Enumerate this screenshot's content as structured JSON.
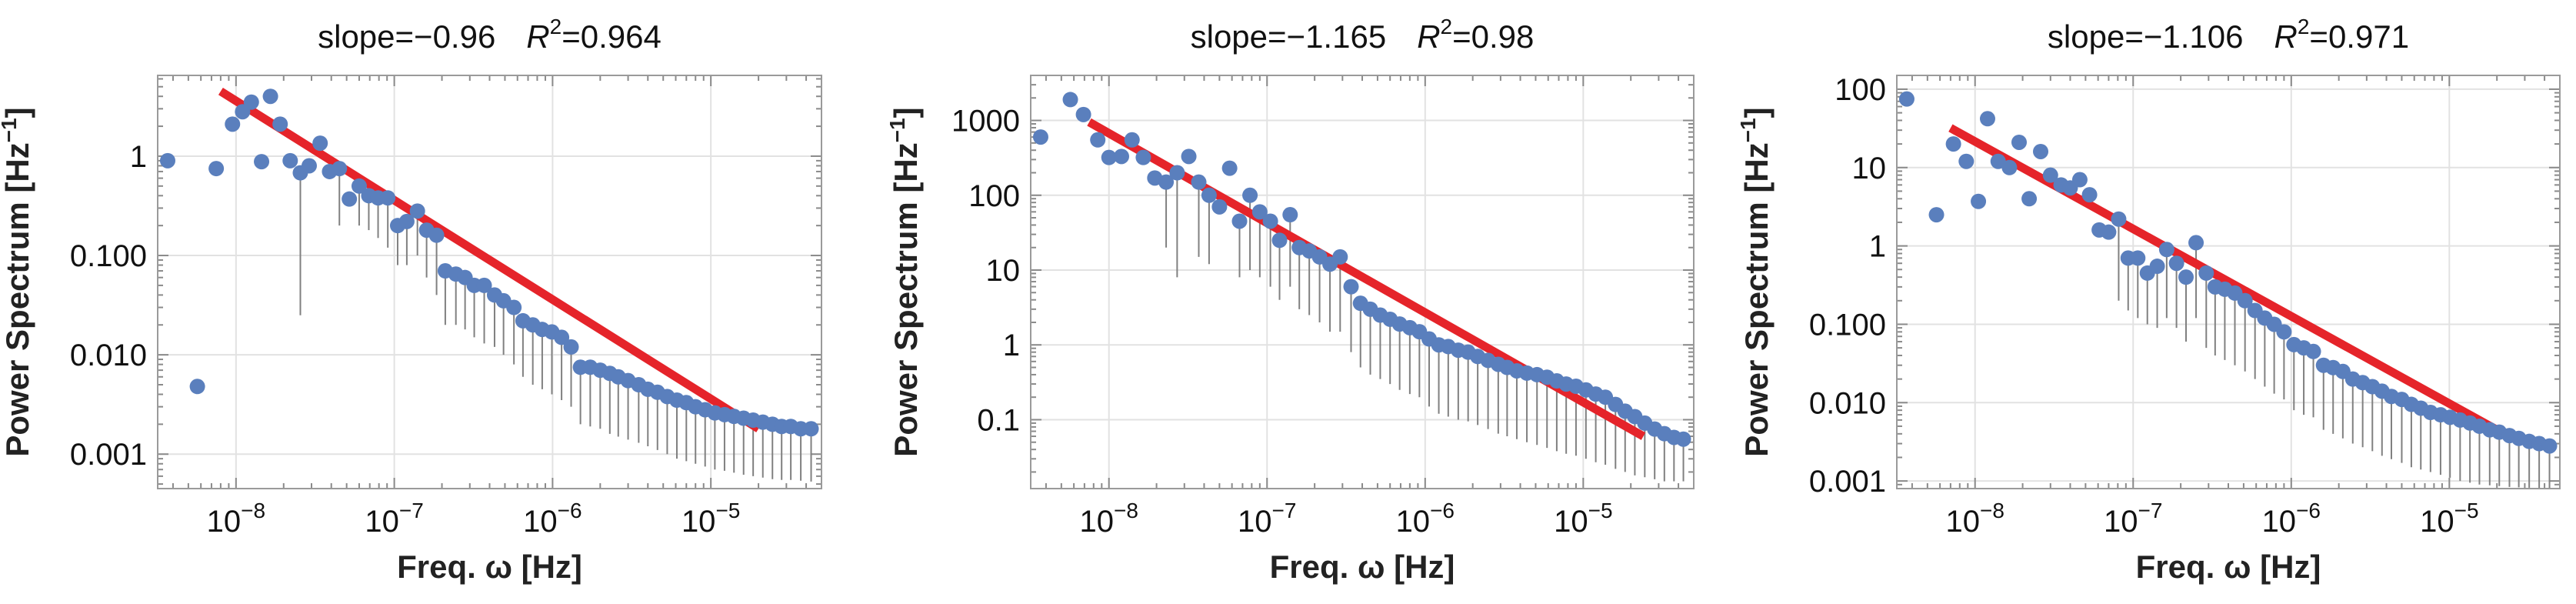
{
  "chart_data": [
    {
      "type": "scatter",
      "title": "slope=−0.96    R²=0.964",
      "title_parts": {
        "slope": "slope=−0.96",
        "r_symbol": "R",
        "r_exp": "2",
        "r_value": "=0.964"
      },
      "xlabel": "Freq. ω [Hz]",
      "ylabel": "Power Spectrum [Hz⁻¹]",
      "ylabel_parts": {
        "base": "Power Spectrum [Hz",
        "exp": "−1",
        "close": "]"
      },
      "x_scale": "log",
      "y_scale": "log",
      "xlim": [
        3.2e-09,
        5e-05
      ],
      "ylim": [
        0.00045,
        6.5
      ],
      "grid": true,
      "x_ticks": [
        {
          "value": 1e-08,
          "base": "10",
          "exp": "−8"
        },
        {
          "value": 1e-07,
          "base": "10",
          "exp": "−7"
        },
        {
          "value": 1e-06,
          "base": "10",
          "exp": "−6"
        },
        {
          "value": 1e-05,
          "base": "10",
          "exp": "−5"
        }
      ],
      "y_ticks": [
        {
          "value": 0.001,
          "label": "0.001"
        },
        {
          "value": 0.01,
          "label": "0.010"
        },
        {
          "value": 0.1,
          "label": "0.100"
        },
        {
          "value": 1,
          "label": "1"
        }
      ],
      "fit_line": {
        "slope": -0.96,
        "r2": 0.964,
        "x": [
          8e-09,
          2e-05
        ],
        "y": [
          4.5,
          0.0018
        ],
        "color": "#e5242a"
      },
      "series": [
        {
          "marker_color": "#5a7fbd",
          "x": [
            3.7e-09,
            5.7e-09,
            7.5e-09,
            9.5e-09,
            1.1e-08,
            1.25e-08,
            1.45e-08,
            1.65e-08,
            1.9e-08,
            2.2e-08,
            2.55e-08,
            2.9e-08,
            3.4e-08,
            3.9e-08,
            4.5e-08,
            5.2e-08,
            6e-08,
            6.9e-08,
            7.9e-08,
            9.1e-08,
            1.05e-07,
            1.2e-07,
            1.4e-07,
            1.6e-07,
            1.85e-07,
            2.1e-07,
            2.45e-07,
            2.8e-07,
            3.2e-07,
            3.7e-07,
            4.3e-07,
            4.9e-07,
            5.7e-07,
            6.5e-07,
            7.5e-07,
            8.6e-07,
            9.9e-07,
            1.14e-06,
            1.31e-06,
            1.5e-06,
            1.73e-06,
            2e-06,
            2.3e-06,
            2.6e-06,
            3e-06,
            3.5e-06,
            4e-06,
            4.6e-06,
            5.3e-06,
            6.1e-06,
            7e-06,
            8e-06,
            9.2e-06,
            1.06e-05,
            1.22e-05,
            1.4e-05,
            1.61e-05,
            1.85e-05,
            2.13e-05,
            2.45e-05,
            2.8e-05,
            3.2e-05,
            3.7e-05,
            4.3e-05
          ],
          "y": [
            0.9,
            0.0048,
            0.75,
            2.1,
            2.8,
            3.5,
            0.88,
            4.0,
            2.1,
            0.9,
            0.68,
            0.8,
            1.35,
            0.7,
            0.75,
            0.37,
            0.5,
            0.4,
            0.38,
            0.38,
            0.2,
            0.22,
            0.28,
            0.18,
            0.16,
            0.07,
            0.065,
            0.06,
            0.05,
            0.05,
            0.04,
            0.035,
            0.03,
            0.022,
            0.02,
            0.018,
            0.017,
            0.015,
            0.012,
            0.0075,
            0.0075,
            0.007,
            0.0065,
            0.006,
            0.0055,
            0.005,
            0.0045,
            0.0042,
            0.0038,
            0.0035,
            0.0033,
            0.003,
            0.0028,
            0.0026,
            0.0025,
            0.0024,
            0.0023,
            0.0022,
            0.0021,
            0.002,
            0.0019,
            0.0019,
            0.0018,
            0.0018
          ],
          "y_low": [
            null,
            null,
            null,
            null,
            null,
            null,
            null,
            null,
            null,
            null,
            0.025,
            null,
            null,
            null,
            0.2,
            null,
            0.2,
            0.18,
            0.15,
            0.12,
            0.08,
            0.08,
            0.1,
            0.06,
            0.04,
            0.02,
            0.02,
            0.018,
            0.015,
            0.013,
            0.012,
            0.01,
            0.008,
            0.006,
            0.005,
            0.0045,
            0.004,
            0.0035,
            0.003,
            0.002,
            0.0019,
            0.0018,
            0.0016,
            0.0015,
            0.0014,
            0.0013,
            0.0012,
            0.0011,
            0.001,
            0.0009,
            0.00085,
            0.0008,
            0.00075,
            0.0007,
            0.00068,
            0.00065,
            0.00062,
            0.0006,
            0.00058,
            0.00056,
            0.00055,
            0.00055,
            0.00054,
            0.00053
          ],
          "y_high": [
            null,
            null,
            null,
            null,
            null,
            null,
            null,
            null,
            null,
            null,
            null,
            null,
            null,
            null,
            null,
            null,
            null,
            null,
            null,
            null,
            null,
            null,
            null,
            null,
            null,
            null,
            null,
            null,
            null,
            null,
            null,
            null,
            null,
            null,
            null,
            null,
            null,
            null,
            null,
            null,
            null,
            null,
            null,
            null,
            null,
            null,
            null,
            null,
            null,
            null,
            null,
            null,
            null,
            null,
            null,
            null,
            null,
            null,
            null,
            null,
            null,
            null,
            null,
            null
          ]
        }
      ]
    },
    {
      "type": "scatter",
      "title": "slope=−1.165    R²=0.98",
      "title_parts": {
        "slope": "slope=−1.165",
        "r_symbol": "R",
        "r_exp": "2",
        "r_value": "=0.98"
      },
      "xlabel": "Freq. ω [Hz]",
      "ylabel": "Power Spectrum [Hz⁻¹]",
      "ylabel_parts": {
        "base": "Power Spectrum [Hz",
        "exp": "−1",
        "close": "]"
      },
      "x_scale": "log",
      "y_scale": "log",
      "xlim": [
        3.2e-09,
        5e-05
      ],
      "ylim": [
        0.012,
        4000
      ],
      "grid": true,
      "x_ticks": [
        {
          "value": 1e-08,
          "base": "10",
          "exp": "−8"
        },
        {
          "value": 1e-07,
          "base": "10",
          "exp": "−7"
        },
        {
          "value": 1e-06,
          "base": "10",
          "exp": "−6"
        },
        {
          "value": 1e-05,
          "base": "10",
          "exp": "−5"
        }
      ],
      "y_ticks": [
        {
          "value": 0.1,
          "label": "0.1"
        },
        {
          "value": 1,
          "label": "1"
        },
        {
          "value": 10,
          "label": "10"
        },
        {
          "value": 100,
          "label": "100"
        },
        {
          "value": 1000,
          "label": "1000"
        }
      ],
      "fit_line": {
        "slope": -1.165,
        "r2": 0.98,
        "x": [
          7.5e-09,
          2.4e-05
        ],
        "y": [
          950,
          0.06
        ],
        "color": "#e5242a"
      },
      "series": [
        {
          "marker_color": "#5a7fbd",
          "x": [
            3.7e-09,
            5.7e-09,
            6.9e-09,
            8.5e-09,
            1e-08,
            1.2e-08,
            1.4e-08,
            1.65e-08,
            1.95e-08,
            2.3e-08,
            2.7e-08,
            3.2e-08,
            3.7e-08,
            4.3e-08,
            5e-08,
            5.8e-08,
            6.7e-08,
            7.8e-08,
            9e-08,
            1.05e-07,
            1.2e-07,
            1.4e-07,
            1.6e-07,
            1.85e-07,
            2.15e-07,
            2.5e-07,
            2.9e-07,
            3.4e-07,
            3.9e-07,
            4.5e-07,
            5.2e-07,
            6e-07,
            6.9e-07,
            8e-07,
            9.2e-07,
            1.06e-06,
            1.22e-06,
            1.4e-06,
            1.62e-06,
            1.87e-06,
            2.15e-06,
            2.5e-06,
            2.9e-06,
            3.3e-06,
            3.8e-06,
            4.4e-06,
            5.1e-06,
            5.9e-06,
            6.8e-06,
            7.8e-06,
            9e-06,
            1.04e-05,
            1.2e-05,
            1.38e-05,
            1.6e-05,
            1.84e-05,
            2.12e-05,
            2.45e-05,
            2.83e-05,
            3.26e-05,
            3.75e-05,
            4.3e-05
          ],
          "y": [
            600,
            1900,
            1200,
            550,
            320,
            330,
            550,
            320,
            170,
            150,
            200,
            330,
            150,
            100,
            70,
            230,
            45,
            100,
            60,
            45,
            25,
            55,
            20,
            18,
            15,
            12,
            15,
            6,
            3.6,
            3,
            2.5,
            2.2,
            1.9,
            1.7,
            1.5,
            1.2,
            1.0,
            0.95,
            0.85,
            0.8,
            0.7,
            0.62,
            0.55,
            0.5,
            0.45,
            0.42,
            0.4,
            0.37,
            0.33,
            0.3,
            0.28,
            0.25,
            0.22,
            0.2,
            0.16,
            0.13,
            0.11,
            0.09,
            0.075,
            0.065,
            0.058,
            0.055
          ],
          "y_low": [
            null,
            null,
            null,
            null,
            null,
            null,
            null,
            null,
            null,
            20,
            8,
            null,
            15,
            12,
            null,
            null,
            8,
            10,
            8,
            6,
            4,
            6,
            3,
            2.5,
            2,
            1.5,
            1.5,
            0.8,
            0.5,
            0.4,
            0.35,
            0.3,
            0.25,
            0.22,
            0.2,
            0.15,
            0.12,
            0.11,
            0.1,
            0.095,
            0.085,
            0.075,
            0.065,
            0.06,
            0.055,
            0.05,
            0.046,
            0.042,
            0.038,
            0.035,
            0.033,
            0.03,
            0.027,
            0.025,
            0.022,
            0.02,
            0.018,
            0.017,
            0.016,
            0.015,
            0.015,
            0.015
          ],
          "y_high": [
            null,
            null,
            null,
            null,
            null,
            null,
            null,
            null,
            null,
            null,
            null,
            null,
            null,
            null,
            null,
            null,
            null,
            null,
            null,
            null,
            null,
            null,
            null,
            null,
            null,
            null,
            null,
            null,
            null,
            null,
            null,
            null,
            null,
            null,
            null,
            null,
            null,
            null,
            null,
            null,
            null,
            null,
            null,
            null,
            null,
            null,
            null,
            null,
            null,
            null,
            null,
            null,
            null,
            null,
            null,
            null,
            null,
            null,
            null,
            null,
            null,
            null
          ]
        }
      ]
    },
    {
      "type": "scatter",
      "title": "slope=−1.106    R²=0.971",
      "title_parts": {
        "slope": "slope=−1.106",
        "r_symbol": "R",
        "r_exp": "2",
        "r_value": "=0.971"
      },
      "xlabel": "Freq. ω [Hz]",
      "ylabel": "Power Spectrum [Hz⁻¹]",
      "ylabel_parts": {
        "base": "Power Spectrum [Hz",
        "exp": "−1",
        "close": "]"
      },
      "x_scale": "log",
      "y_scale": "log",
      "xlim": [
        3.2e-09,
        5e-05
      ],
      "ylim": [
        0.0008,
        150
      ],
      "grid": true,
      "x_ticks": [
        {
          "value": 1e-08,
          "base": "10",
          "exp": "−8"
        },
        {
          "value": 1e-07,
          "base": "10",
          "exp": "−7"
        },
        {
          "value": 1e-06,
          "base": "10",
          "exp": "−6"
        },
        {
          "value": 1e-05,
          "base": "10",
          "exp": "−5"
        }
      ],
      "y_ticks": [
        {
          "value": 0.001,
          "label": "0.001"
        },
        {
          "value": 0.01,
          "label": "0.010"
        },
        {
          "value": 0.1,
          "label": "0.100"
        },
        {
          "value": 1,
          "label": "1"
        },
        {
          "value": 10,
          "label": "10"
        },
        {
          "value": 100,
          "label": "100"
        }
      ],
      "fit_line": {
        "slope": -1.106,
        "r2": 0.971,
        "x": [
          7e-09,
          2.5e-05
        ],
        "y": [
          32,
          0.0035
        ],
        "color": "#e5242a"
      },
      "series": [
        {
          "marker_color": "#5a7fbd",
          "x": [
            3.7e-09,
            5.7e-09,
            7.3e-09,
            8.8e-09,
            1.05e-08,
            1.2e-08,
            1.4e-08,
            1.65e-08,
            1.9e-08,
            2.2e-08,
            2.6e-08,
            3e-08,
            3.5e-08,
            4e-08,
            4.6e-08,
            5.3e-08,
            6.1e-08,
            7e-08,
            8.1e-08,
            9.3e-08,
            1.07e-07,
            1.23e-07,
            1.42e-07,
            1.63e-07,
            1.88e-07,
            2.16e-07,
            2.5e-07,
            2.9e-07,
            3.3e-07,
            3.8e-07,
            4.4e-07,
            5.1e-07,
            5.9e-07,
            6.8e-07,
            7.8e-07,
            9e-07,
            1.04e-06,
            1.2e-06,
            1.38e-06,
            1.6e-06,
            1.84e-06,
            2.12e-06,
            2.45e-06,
            2.83e-06,
            3.26e-06,
            3.75e-06,
            4.3e-06,
            5e-06,
            5.75e-06,
            6.6e-06,
            7.6e-06,
            8.8e-06,
            1.01e-05,
            1.17e-05,
            1.35e-05,
            1.55e-05,
            1.8e-05,
            2.07e-05,
            2.4e-05,
            2.75e-05,
            3.2e-05,
            3.7e-05,
            4.3e-05
          ],
          "y": [
            75,
            2.5,
            20,
            12,
            3.7,
            42,
            12,
            10,
            21,
            4,
            16,
            8,
            6,
            5.5,
            7,
            4.5,
            1.6,
            1.5,
            2.2,
            0.7,
            0.7,
            0.45,
            0.55,
            0.9,
            0.6,
            0.4,
            1.1,
            0.45,
            0.3,
            0.28,
            0.25,
            0.2,
            0.15,
            0.12,
            0.1,
            0.08,
            0.055,
            0.05,
            0.045,
            0.03,
            0.028,
            0.025,
            0.02,
            0.018,
            0.016,
            0.014,
            0.012,
            0.011,
            0.0095,
            0.0085,
            0.0075,
            0.007,
            0.0065,
            0.006,
            0.0055,
            0.005,
            0.0045,
            0.0042,
            0.0038,
            0.0035,
            0.0032,
            0.003,
            0.0028
          ],
          "y_low": [
            null,
            null,
            null,
            null,
            null,
            null,
            null,
            null,
            null,
            null,
            null,
            null,
            null,
            null,
            null,
            null,
            null,
            null,
            0.2,
            0.15,
            0.12,
            0.1,
            0.09,
            0.12,
            0.09,
            0.06,
            0.12,
            0.05,
            0.04,
            0.035,
            0.03,
            0.025,
            0.02,
            0.016,
            0.013,
            0.011,
            0.008,
            0.007,
            0.0065,
            0.0045,
            0.004,
            0.0035,
            0.003,
            0.0027,
            0.0024,
            0.0021,
            0.0019,
            0.0017,
            0.0015,
            0.0014,
            0.0013,
            0.0012,
            0.0011,
            0.001,
            0.00095,
            0.0009,
            0.00088,
            0.00086,
            0.00084,
            0.00083,
            0.00082,
            0.00081,
            0.0008
          ],
          "y_high": [
            null,
            null,
            null,
            null,
            null,
            null,
            null,
            null,
            null,
            null,
            null,
            null,
            null,
            null,
            null,
            null,
            null,
            null,
            null,
            null,
            null,
            null,
            null,
            null,
            null,
            null,
            null,
            null,
            null,
            null,
            null,
            null,
            null,
            null,
            null,
            null,
            null,
            null,
            null,
            null,
            null,
            null,
            null,
            null,
            null,
            null,
            null,
            null,
            null,
            null,
            null,
            null,
            null,
            null,
            null,
            null,
            null,
            null,
            null,
            null,
            null,
            null,
            null
          ]
        }
      ]
    }
  ]
}
